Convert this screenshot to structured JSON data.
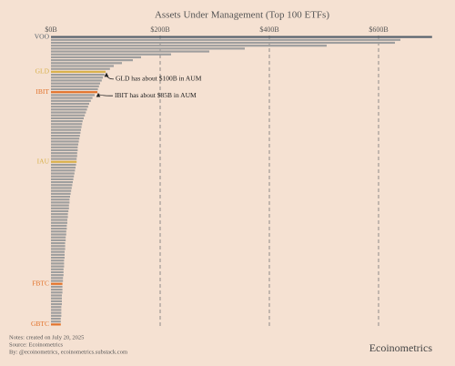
{
  "chart_data": {
    "type": "barh",
    "title": "Assets Under Management (Top 100 ETFs)",
    "categories": [
      "VOO",
      null,
      null,
      null,
      null,
      null,
      null,
      null,
      null,
      null,
      null,
      null,
      "GLD",
      null,
      null,
      null,
      null,
      null,
      null,
      "IBIT",
      null,
      null,
      null,
      null,
      null,
      null,
      null,
      null,
      null,
      null,
      null,
      null,
      null,
      null,
      null,
      null,
      null,
      null,
      null,
      null,
      null,
      null,
      null,
      "IAU",
      null,
      null,
      null,
      null,
      null,
      null,
      null,
      null,
      null,
      null,
      null,
      null,
      null,
      null,
      null,
      null,
      null,
      null,
      null,
      null,
      null,
      null,
      null,
      null,
      null,
      null,
      null,
      null,
      null,
      null,
      null,
      null,
      null,
      null,
      null,
      null,
      null,
      null,
      null,
      null,
      null,
      "FBTC",
      null,
      null,
      null,
      null,
      null,
      null,
      null,
      null,
      null,
      null,
      null,
      null,
      null,
      "GBTC"
    ],
    "values": [
      698,
      640,
      630,
      505,
      355,
      290,
      220,
      165,
      150,
      130,
      115,
      108,
      100,
      98,
      95,
      93,
      90,
      88,
      86,
      85,
      80,
      76,
      73,
      70,
      68,
      66,
      64,
      62,
      60,
      58,
      57,
      56,
      55,
      54,
      53,
      52,
      51,
      50,
      49,
      49,
      48,
      48,
      47,
      47,
      46,
      45,
      44,
      43,
      42,
      41,
      40,
      39,
      38,
      37,
      36,
      35,
      34,
      34,
      33,
      33,
      32,
      31,
      31,
      30,
      30,
      29,
      29,
      28,
      28,
      27,
      27,
      26,
      26,
      26,
      25,
      25,
      25,
      24,
      24,
      24,
      23,
      23,
      23,
      22,
      22,
      21,
      21,
      21,
      21,
      20,
      20,
      20,
      20,
      19,
      19,
      19,
      19,
      18,
      18,
      18
    ],
    "color": "#9e9e9e",
    "highlight_colors": {
      "VOO": "#56616c",
      "GLD": "#d8b04a",
      "IBIT": "#e2722a",
      "IAU": "#d8b04a",
      "FBTC": "#e2722a",
      "GBTC": "#e2722a"
    },
    "xlim": [
      0,
      700
    ],
    "xticks": [
      {
        "value": 0,
        "label": "$0B"
      },
      {
        "value": 200,
        "label": "$200B"
      },
      {
        "value": 400,
        "label": "$400B"
      },
      {
        "value": 600,
        "label": "$600B"
      }
    ],
    "grid": true,
    "annotations": [
      "GLD has about $100B in AUM",
      "IBIT has about $85B in AUM"
    ],
    "notes": [
      "Notes: created on July 20, 2025",
      "Source: Ecoinometrics",
      "By: @ecoinometrics, ecoinometrics.substack.com"
    ],
    "brand": "Ecoinometrics"
  }
}
